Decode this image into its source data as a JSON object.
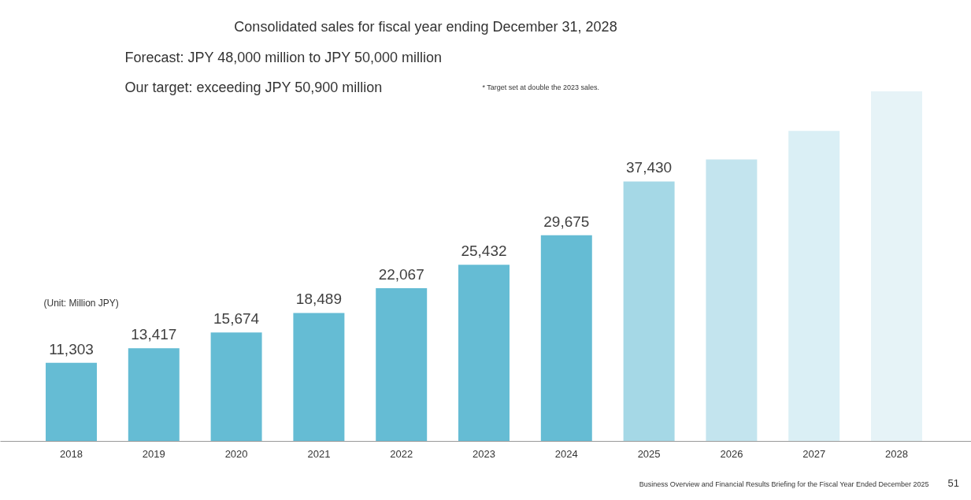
{
  "chart_data": {
    "type": "bar",
    "categories": [
      "2018",
      "2019",
      "2020",
      "2021",
      "2022",
      "2023",
      "2024",
      "2025",
      "2026",
      "2027",
      "2028"
    ],
    "values": [
      11303,
      13417,
      15674,
      18489,
      22067,
      25432,
      29675,
      37430,
      40600,
      44700,
      50400
    ],
    "colors": [
      "#65bcd4",
      "#65bcd4",
      "#65bcd4",
      "#65bcd4",
      "#65bcd4",
      "#65bcd4",
      "#65bcd4",
      "#a5d8e6",
      "#c3e4ee",
      "#daeff5",
      "#e6f3f7"
    ],
    "value_labels": [
      "11,303",
      "13,417",
      "15,674",
      "18,489",
      "22,067",
      "25,432",
      "29,675",
      "37,430",
      null,
      null,
      null
    ],
    "grid": false,
    "annotations": [
      "Consolidated sales for fiscal year ending December 31, 2028",
      "Forecast: JPY 48,000 million to JPY 50,000 million",
      "Our target: exceeding JPY 50,900 million",
      "* Target set at double the 2023 sales.",
      "(Unit: Million JPY)",
      "Business Overview and Financial Results Briefing for the Fiscal Year Ended December 2025",
      "51"
    ]
  }
}
